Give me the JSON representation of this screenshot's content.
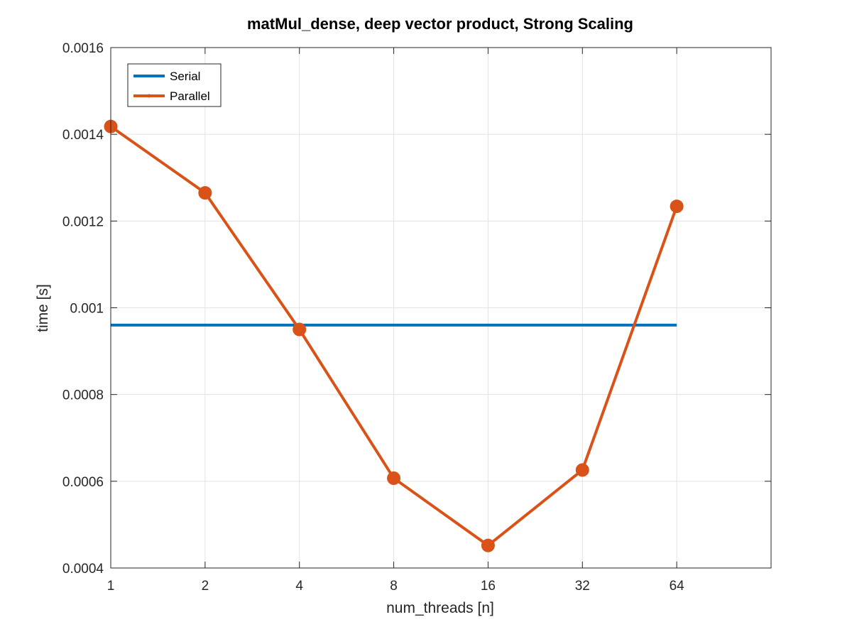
{
  "chart_data": {
    "type": "line",
    "title": "matMul_dense, deep vector product, Strong Scaling",
    "xlabel": "num_threads [n]",
    "ylabel": "time [s]",
    "x_scale": "log2",
    "categories": [
      "1",
      "2",
      "4",
      "8",
      "16",
      "32",
      "64"
    ],
    "x": [
      1,
      2,
      4,
      8,
      16,
      32,
      64
    ],
    "xlim": [
      1,
      128
    ],
    "ylim": [
      0.0004,
      0.0016
    ],
    "yticks": [
      0.0004,
      0.0006,
      0.0008,
      0.001,
      0.0012,
      0.0014,
      0.0016
    ],
    "ytick_labels": [
      "0.0004",
      "0.0006",
      "0.0008",
      "0.001",
      "0.0012",
      "0.0014",
      "0.0016"
    ],
    "grid": true,
    "legend_position": "top-left",
    "series": [
      {
        "name": "Serial",
        "color": "#0072BD",
        "marker": "none",
        "values": [
          0.00096,
          0.00096,
          0.00096,
          0.00096,
          0.00096,
          0.00096,
          0.00096
        ]
      },
      {
        "name": "Parallel",
        "color": "#D95319",
        "marker": "circle",
        "values": [
          0.001418,
          0.001265,
          0.00095,
          0.000607,
          0.000452,
          0.000626,
          0.001234
        ]
      }
    ]
  }
}
